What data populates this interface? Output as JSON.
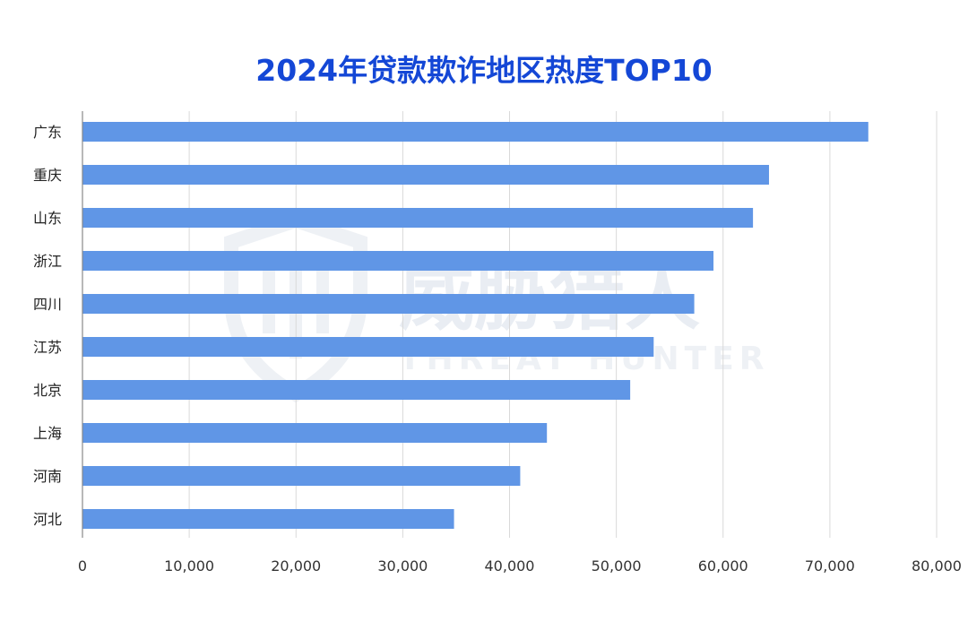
{
  "chart_data": {
    "type": "bar",
    "orientation": "horizontal",
    "title": "2024年贷款欺诈地区热度TOP10",
    "categories": [
      "广东",
      "重庆",
      "山东",
      "浙江",
      "四川",
      "江苏",
      "北京",
      "上海",
      "河南",
      "河北"
    ],
    "values": [
      73600,
      64300,
      62800,
      59100,
      57300,
      53500,
      51300,
      43500,
      41000,
      34800
    ],
    "xlim": [
      0,
      80000
    ],
    "xticks": [
      0,
      10000,
      20000,
      30000,
      40000,
      50000,
      60000,
      70000,
      80000
    ],
    "xtick_labels": [
      "0",
      "10,000",
      "20,000",
      "30,000",
      "40,000",
      "50,000",
      "60,000",
      "70,000",
      "80,000"
    ],
    "grid": true,
    "bar_color": "#6096e6",
    "title_color": "#1447d6"
  },
  "watermark": {
    "name_cn": "威胁猎人",
    "name_en": "THREAT HUNTER"
  }
}
